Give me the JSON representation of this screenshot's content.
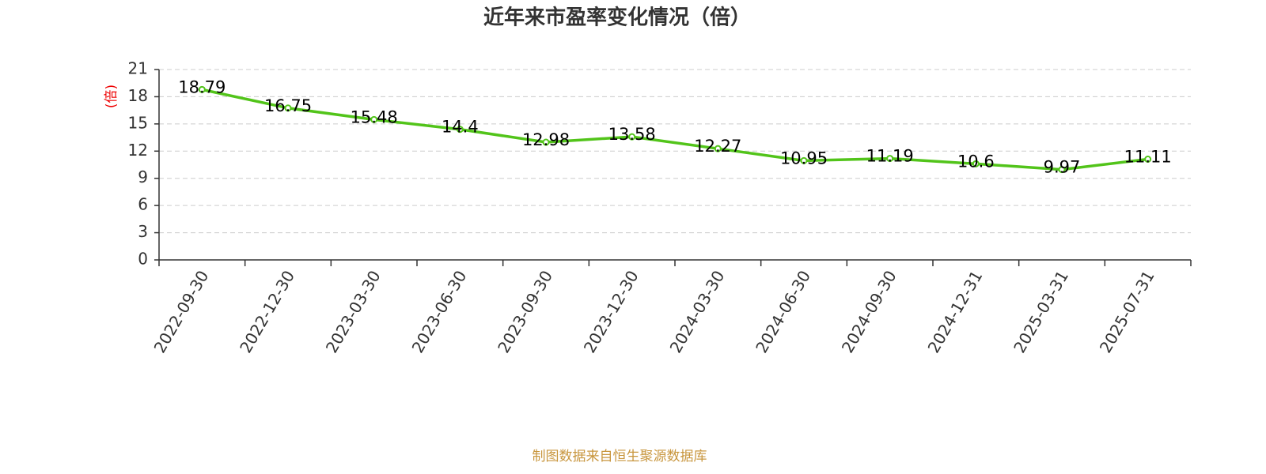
{
  "chart_data": {
    "type": "line",
    "title": "近年来市盈率变化情况（倍）",
    "y_label": "(倍)",
    "categories": [
      "2022-09-30",
      "2022-12-30",
      "2023-03-30",
      "2023-06-30",
      "2023-09-30",
      "2023-12-30",
      "2024-03-30",
      "2024-06-30",
      "2024-09-30",
      "2024-12-31",
      "2025-03-31",
      "2025-07-31"
    ],
    "series": [
      {
        "name": "市盈率",
        "color": "#52c41a",
        "values": [
          18.79,
          16.75,
          15.48,
          14.4,
          12.98,
          13.58,
          12.27,
          10.95,
          11.19,
          10.6,
          9.97,
          11.11
        ]
      }
    ],
    "ylim": [
      0,
      21
    ],
    "yticks": [
      0,
      3,
      6,
      9,
      12,
      15,
      18,
      21
    ],
    "grid": true,
    "footer": "制图数据来自恒生聚源数据库"
  }
}
